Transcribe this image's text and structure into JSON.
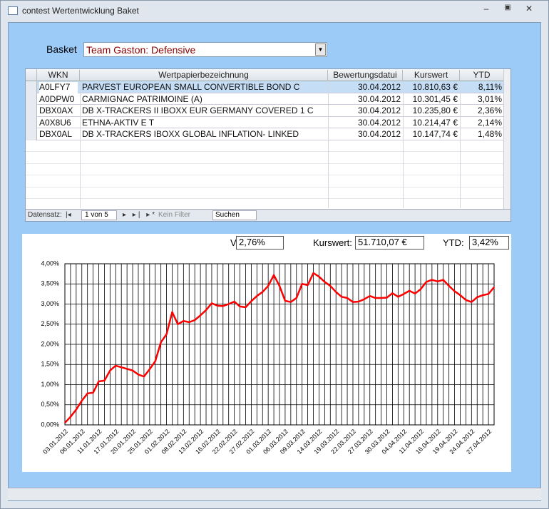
{
  "window": {
    "title": "contest Wertentwicklung Baket"
  },
  "basket": {
    "label": "Basket",
    "value": "Team Gaston: Defensive"
  },
  "table": {
    "columns": [
      "WKN",
      "Wertpapierbezeichnung",
      "Bewertungsdatui",
      "Kurswert",
      "YTD"
    ],
    "rows": [
      [
        "A0LFY7",
        "PARVEST EUROPEAN SMALL CONVERTIBLE BOND C",
        "30.04.2012",
        "10.810,63 €",
        "8,11%"
      ],
      [
        "A0DPW0",
        "CARMIGNAC PATRIMOINE (A)",
        "30.04.2012",
        "10.301,45 €",
        "3,01%"
      ],
      [
        "DBX0AX",
        "DB X-TRACKERS II IBOXX EUR GERMANY COVERED 1 C",
        "30.04.2012",
        "10.235,80 €",
        "2,36%"
      ],
      [
        "A0X8U6",
        "ETHNA-AKTIV E T",
        "30.04.2012",
        "10.214,47 €",
        "2,14%"
      ],
      [
        "DBX0AL",
        "DB X-TRACKERS IBOXX GLOBAL INFLATION- LINKED",
        "30.04.2012",
        "10.147,74 €",
        "1,48%"
      ]
    ]
  },
  "navigation": {
    "label": "Datensatz:",
    "position": "1 von 5",
    "filter": "Kein Filter",
    "search": "Suchen"
  },
  "stats": {
    "vola_label": "Vola:",
    "vola": "2,76%",
    "kurswert_label": "Kurswert:",
    "kurswert": "51.710,07 €",
    "ytd_label": "YTD:",
    "ytd": "3,42%"
  },
  "chart_data": {
    "type": "line",
    "categories": [
      "03.01.2012",
      null,
      null,
      "06.01.2012",
      null,
      null,
      "11.01.2012",
      null,
      null,
      "17.01.2012",
      null,
      null,
      "20.01.2012",
      null,
      null,
      "25.01.2012",
      null,
      null,
      "01.02.2012",
      null,
      null,
      "08.02.2012",
      null,
      null,
      "13.02.2012",
      null,
      null,
      "16.02.2012",
      null,
      null,
      "22.02.2012",
      null,
      null,
      "27.02.2012",
      null,
      null,
      "01.03.2012",
      null,
      null,
      "06.03.2012",
      null,
      null,
      "09.03.2012",
      null,
      null,
      "14.03.2012",
      null,
      null,
      "19.03.2012",
      null,
      null,
      "22.03.2012",
      null,
      null,
      "27.03.2012",
      null,
      null,
      "30.03.2012",
      null,
      null,
      "04.04.2012",
      null,
      null,
      "11.04.2012",
      null,
      null,
      "16.04.2012",
      null,
      null,
      "19.04.2012",
      null,
      null,
      "24.04.2012",
      null,
      null,
      "27.04.2012",
      null
    ],
    "series": [
      {
        "color": "#ff0000",
        "values": [
          0.05,
          0.2,
          0.38,
          0.6,
          0.78,
          0.8,
          1.08,
          1.1,
          1.35,
          1.47,
          1.43,
          1.39,
          1.35,
          1.25,
          1.2,
          1.38,
          1.58,
          2.05,
          2.25,
          2.8,
          2.5,
          2.58,
          2.55,
          2.6,
          2.72,
          2.85,
          3.02,
          2.96,
          2.95,
          3.0,
          3.06,
          2.94,
          2.92,
          3.07,
          3.2,
          3.3,
          3.45,
          3.72,
          3.45,
          3.08,
          3.05,
          3.15,
          3.5,
          3.47,
          3.77,
          3.68,
          3.55,
          3.45,
          3.3,
          3.18,
          3.15,
          3.05,
          3.06,
          3.12,
          3.2,
          3.15,
          3.15,
          3.16,
          3.27,
          3.18,
          3.25,
          3.33,
          3.26,
          3.37,
          3.55,
          3.6,
          3.56,
          3.6,
          3.45,
          3.32,
          3.22,
          3.1,
          3.05,
          3.17,
          3.22,
          3.25,
          3.42
        ]
      }
    ],
    "ylim": [
      0,
      4
    ],
    "yticks": [
      {
        "value": 0,
        "label": "0,00%"
      },
      {
        "value": 0.5,
        "label": "0,50%"
      },
      {
        "value": 1,
        "label": "1,00%"
      },
      {
        "value": 1.5,
        "label": "1,50%"
      },
      {
        "value": 2,
        "label": "2,00%"
      },
      {
        "value": 2.5,
        "label": "2,50%"
      },
      {
        "value": 3,
        "label": "3,00%"
      },
      {
        "value": 3.5,
        "label": "3,50%"
      },
      {
        "value": 4,
        "label": "4,00%"
      }
    ],
    "grid": true
  }
}
